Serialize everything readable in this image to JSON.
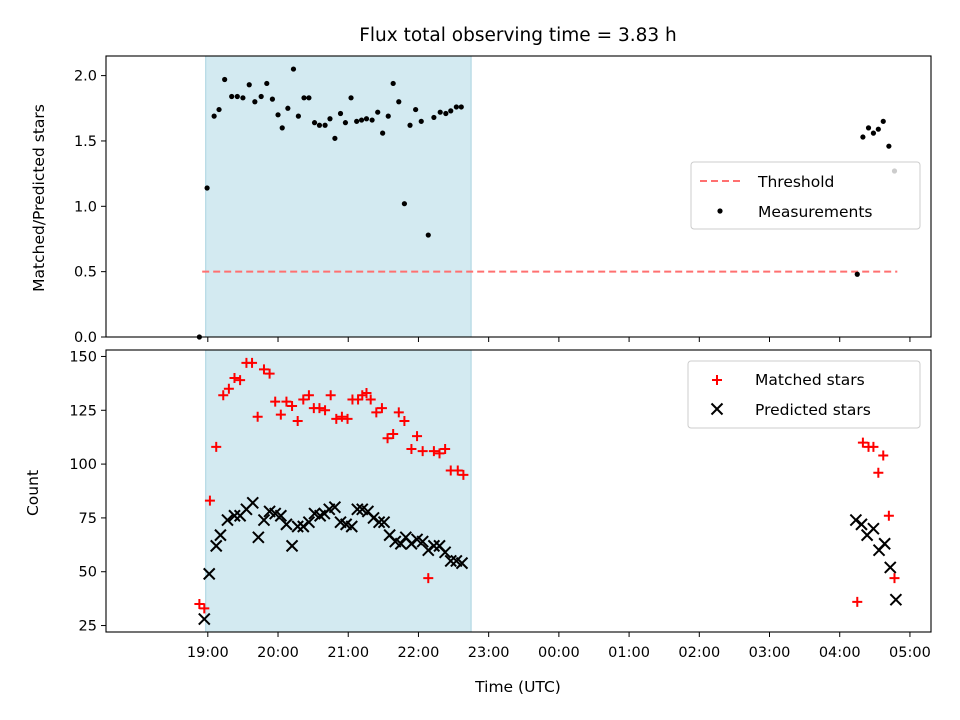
{
  "chart_data": [
    {
      "type": "scatter",
      "title": "Flux total observing time = 3.83 h",
      "xlabel": "",
      "ylabel": "Matched/Predicted stars",
      "ylim": [
        0,
        2.15
      ],
      "yticks": [
        0.0,
        0.5,
        1.0,
        1.5,
        2.0
      ],
      "ytick_labels": [
        "0.0",
        "0.5",
        "1.0",
        "1.5",
        "2.0"
      ],
      "shaded_span": {
        "x": [
          18.97,
          22.75
        ],
        "color": "#d3eaf1"
      },
      "threshold": {
        "name": "Threshold",
        "y": 0.5,
        "x": [
          18.92,
          28.82
        ],
        "color": "#ff7070"
      },
      "series": [
        {
          "name": "Measurements",
          "marker": "dot",
          "color": "#000000",
          "points": [
            [
              18.88,
              0.0
            ],
            [
              18.99,
              1.14
            ],
            [
              19.09,
              1.69
            ],
            [
              19.16,
              1.74
            ],
            [
              19.24,
              1.97
            ],
            [
              19.34,
              1.84
            ],
            [
              19.42,
              1.84
            ],
            [
              19.5,
              1.83
            ],
            [
              19.59,
              1.93
            ],
            [
              19.67,
              1.8
            ],
            [
              19.76,
              1.84
            ],
            [
              19.84,
              1.94
            ],
            [
              19.92,
              1.82
            ],
            [
              20.0,
              1.7
            ],
            [
              20.06,
              1.6
            ],
            [
              20.14,
              1.75
            ],
            [
              20.22,
              2.05
            ],
            [
              20.29,
              1.69
            ],
            [
              20.37,
              1.83
            ],
            [
              20.44,
              1.83
            ],
            [
              20.52,
              1.64
            ],
            [
              20.59,
              1.62
            ],
            [
              20.67,
              1.62
            ],
            [
              20.74,
              1.67
            ],
            [
              20.81,
              1.52
            ],
            [
              20.89,
              1.71
            ],
            [
              20.96,
              1.64
            ],
            [
              21.04,
              1.83
            ],
            [
              21.12,
              1.65
            ],
            [
              21.19,
              1.66
            ],
            [
              21.26,
              1.67
            ],
            [
              21.34,
              1.66
            ],
            [
              21.42,
              1.72
            ],
            [
              21.49,
              1.56
            ],
            [
              21.57,
              1.69
            ],
            [
              21.64,
              1.94
            ],
            [
              21.72,
              1.8
            ],
            [
              21.8,
              1.02
            ],
            [
              21.88,
              1.62
            ],
            [
              21.96,
              1.74
            ],
            [
              22.04,
              1.65
            ],
            [
              22.14,
              0.78
            ],
            [
              22.22,
              1.68
            ],
            [
              22.31,
              1.72
            ],
            [
              22.39,
              1.71
            ],
            [
              22.46,
              1.73
            ],
            [
              22.54,
              1.76
            ],
            [
              22.61,
              1.76
            ],
            [
              28.25,
              0.48
            ],
            [
              28.33,
              1.53
            ],
            [
              28.41,
              1.6
            ],
            [
              28.48,
              1.56
            ],
            [
              28.55,
              1.59
            ],
            [
              28.62,
              1.65
            ],
            [
              28.7,
              1.46
            ],
            [
              28.78,
              1.27
            ]
          ]
        }
      ],
      "legend": {
        "position": "center-right",
        "entries": [
          "Threshold",
          "Measurements"
        ]
      }
    },
    {
      "type": "scatter",
      "title": "",
      "xlabel": "Time (UTC)",
      "ylabel": "Count",
      "ylim": [
        22,
        153
      ],
      "yticks": [
        25,
        50,
        75,
        100,
        125,
        150
      ],
      "ytick_labels": [
        "25",
        "50",
        "75",
        "100",
        "125",
        "150"
      ],
      "xlim": [
        17.55,
        29.3
      ],
      "xticks": [
        19,
        20,
        21,
        22,
        23,
        24,
        25,
        26,
        27,
        28,
        29
      ],
      "xtick_labels": [
        "19:00",
        "20:00",
        "21:00",
        "22:00",
        "23:00",
        "00:00",
        "01:00",
        "02:00",
        "03:00",
        "04:00",
        "05:00"
      ],
      "shaded_span": {
        "x": [
          18.97,
          22.75
        ],
        "color": "#d3eaf1"
      },
      "series": [
        {
          "name": "Matched stars",
          "marker": "plus",
          "color": "#ff0000",
          "points": [
            [
              18.88,
              35
            ],
            [
              18.95,
              33
            ],
            [
              19.03,
              83
            ],
            [
              19.12,
              108
            ],
            [
              19.22,
              132
            ],
            [
              19.3,
              135
            ],
            [
              19.38,
              140
            ],
            [
              19.46,
              139
            ],
            [
              19.55,
              147
            ],
            [
              19.63,
              147
            ],
            [
              19.71,
              122
            ],
            [
              19.8,
              144
            ],
            [
              19.88,
              142
            ],
            [
              19.96,
              129
            ],
            [
              20.04,
              123
            ],
            [
              20.12,
              129
            ],
            [
              20.2,
              127
            ],
            [
              20.28,
              120
            ],
            [
              20.36,
              130
            ],
            [
              20.44,
              132
            ],
            [
              20.51,
              126
            ],
            [
              20.59,
              126
            ],
            [
              20.67,
              125
            ],
            [
              20.75,
              132
            ],
            [
              20.83,
              121
            ],
            [
              20.91,
              122
            ],
            [
              20.99,
              121
            ],
            [
              21.06,
              130
            ],
            [
              21.14,
              130
            ],
            [
              21.2,
              132
            ],
            [
              21.26,
              133
            ],
            [
              21.32,
              130
            ],
            [
              21.4,
              124
            ],
            [
              21.48,
              126
            ],
            [
              21.56,
              112
            ],
            [
              21.64,
              114
            ],
            [
              21.72,
              124
            ],
            [
              21.8,
              120
            ],
            [
              21.9,
              107
            ],
            [
              21.98,
              113
            ],
            [
              22.06,
              106
            ],
            [
              22.14,
              47
            ],
            [
              22.22,
              106
            ],
            [
              22.3,
              105
            ],
            [
              22.38,
              107
            ],
            [
              22.46,
              97
            ],
            [
              22.56,
              97
            ],
            [
              22.64,
              95
            ],
            [
              28.25,
              36
            ],
            [
              28.33,
              110
            ],
            [
              28.41,
              108
            ],
            [
              28.48,
              108
            ],
            [
              28.55,
              96
            ],
            [
              28.62,
              104
            ],
            [
              28.7,
              76
            ],
            [
              28.78,
              47
            ]
          ]
        },
        {
          "name": "Predicted stars",
          "marker": "x",
          "color": "#000000",
          "points": [
            [
              18.95,
              28
            ],
            [
              19.02,
              49
            ],
            [
              19.12,
              62
            ],
            [
              19.18,
              67
            ],
            [
              19.28,
              74
            ],
            [
              19.38,
              76
            ],
            [
              19.46,
              76
            ],
            [
              19.55,
              79
            ],
            [
              19.64,
              82
            ],
            [
              19.72,
              66
            ],
            [
              19.8,
              74
            ],
            [
              19.88,
              78
            ],
            [
              19.96,
              77
            ],
            [
              20.04,
              76
            ],
            [
              20.12,
              72
            ],
            [
              20.2,
              62
            ],
            [
              20.28,
              71
            ],
            [
              20.36,
              71
            ],
            [
              20.44,
              73
            ],
            [
              20.52,
              77
            ],
            [
              20.6,
              76
            ],
            [
              20.66,
              77
            ],
            [
              20.73,
              79
            ],
            [
              20.81,
              80
            ],
            [
              20.89,
              73
            ],
            [
              20.97,
              72
            ],
            [
              21.05,
              71
            ],
            [
              21.13,
              79
            ],
            [
              21.2,
              79
            ],
            [
              21.28,
              78
            ],
            [
              21.36,
              75
            ],
            [
              21.44,
              73
            ],
            [
              21.51,
              73
            ],
            [
              21.59,
              67
            ],
            [
              21.67,
              64
            ],
            [
              21.75,
              63
            ],
            [
              21.82,
              66
            ],
            [
              21.9,
              63
            ],
            [
              21.98,
              65
            ],
            [
              22.06,
              64
            ],
            [
              22.14,
              60
            ],
            [
              22.22,
              62
            ],
            [
              22.3,
              62
            ],
            [
              22.38,
              59
            ],
            [
              22.46,
              55
            ],
            [
              22.54,
              55
            ],
            [
              22.62,
              54
            ],
            [
              28.23,
              74
            ],
            [
              28.31,
              72
            ],
            [
              28.39,
              67
            ],
            [
              28.48,
              70
            ],
            [
              28.56,
              60
            ],
            [
              28.64,
              63
            ],
            [
              28.72,
              52
            ],
            [
              28.8,
              37
            ]
          ]
        }
      ],
      "legend": {
        "position": "top-right",
        "entries": [
          "Matched stars",
          "Predicted stars"
        ]
      }
    }
  ]
}
